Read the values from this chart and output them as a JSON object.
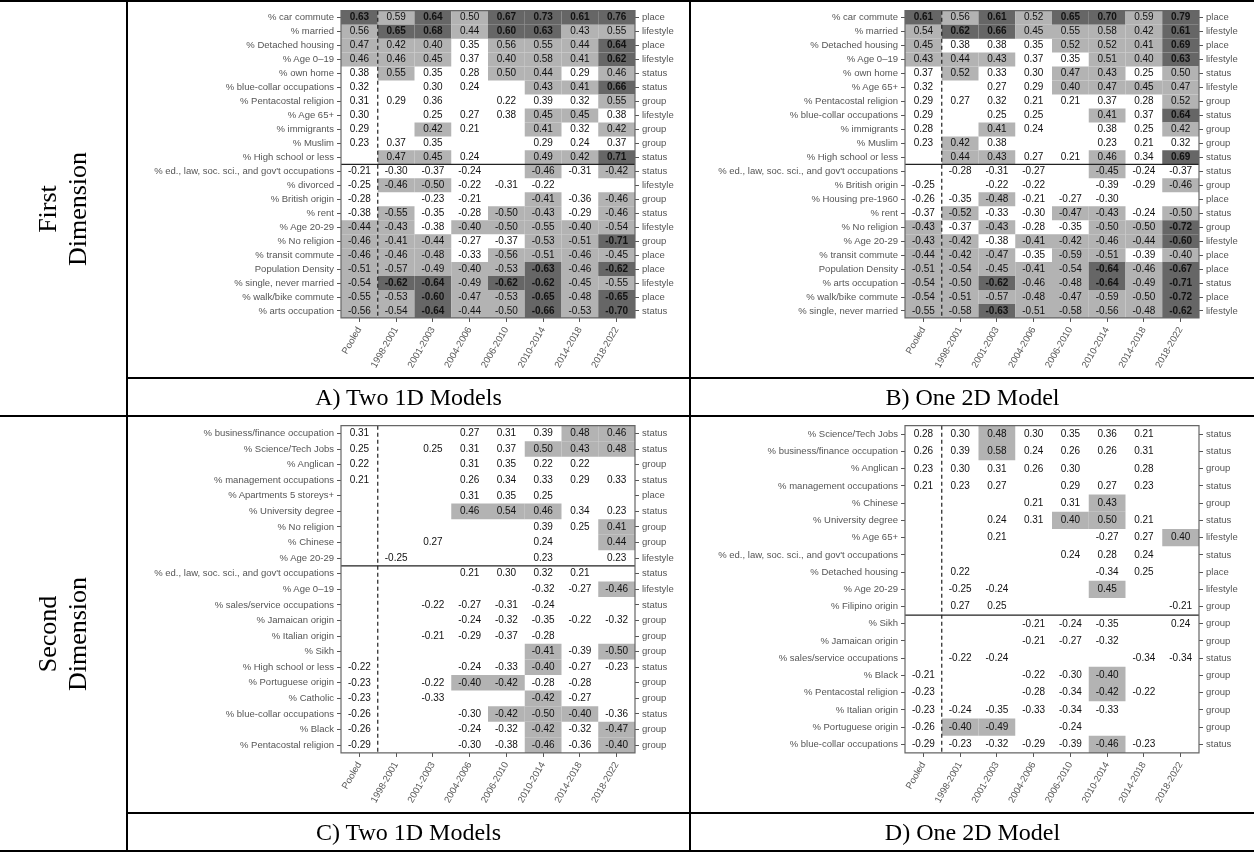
{
  "chart_data": [
    {
      "type": "heatmap",
      "title": "A) Two 1D Models",
      "annotations": [
        "First Dimension"
      ],
      "data_labels": true,
      "categories": [
        "Pooled",
        "1998-2001",
        "2001-2003",
        "2004-2006",
        "2006-2010",
        "2010-2014",
        "2014-2018",
        "2018-2022"
      ],
      "y_categories": [
        "% car commute",
        "% married",
        "% Detached housing",
        "% Age 0–19",
        "% own home",
        "% blue-collar occupations",
        "% Pentacostal religion",
        "% Age 65+",
        "% immigrants",
        "% Muslim",
        "% High school or less",
        "% ed., law, soc. sci., and gov't occupations",
        "% divorced",
        "% British origin",
        "% rent",
        "% Age 20-29",
        "% No religion",
        "% transit commute",
        "Population Density",
        "% single, never married",
        "% walk/bike commute",
        "% arts occupation"
      ],
      "y2_categories": [
        "place",
        "lifestyle",
        "place",
        "lifestyle",
        "status",
        "status",
        "group",
        "lifestyle",
        "group",
        "group",
        "status",
        "status",
        "lifestyle",
        "group",
        "status",
        "lifestyle",
        "group",
        "place",
        "place",
        "lifestyle",
        "place",
        "status"
      ],
      "cells": [
        [
          0.63,
          0.59,
          0.64,
          0.5,
          0.67,
          0.73,
          0.61,
          0.76
        ],
        [
          0.56,
          0.65,
          0.68,
          0.44,
          0.6,
          0.63,
          0.43,
          0.55
        ],
        [
          0.47,
          0.42,
          0.4,
          0.35,
          0.56,
          0.55,
          0.44,
          0.64
        ],
        [
          0.46,
          0.46,
          0.45,
          0.37,
          0.4,
          0.58,
          0.41,
          0.62
        ],
        [
          0.38,
          0.55,
          0.35,
          0.28,
          0.5,
          0.44,
          0.29,
          0.46
        ],
        [
          0.32,
          null,
          0.3,
          0.24,
          null,
          0.43,
          0.41,
          0.66
        ],
        [
          0.31,
          0.29,
          0.36,
          null,
          0.22,
          0.39,
          0.32,
          0.55
        ],
        [
          0.3,
          null,
          0.25,
          0.27,
          0.38,
          0.45,
          0.45,
          0.38
        ],
        [
          0.29,
          null,
          0.42,
          0.21,
          null,
          0.41,
          0.32,
          0.42
        ],
        [
          0.23,
          0.37,
          0.35,
          null,
          null,
          0.29,
          0.24,
          0.37
        ],
        [
          null,
          0.47,
          0.45,
          0.24,
          null,
          0.49,
          0.42,
          0.71
        ],
        [
          -0.21,
          -0.3,
          -0.37,
          -0.24,
          null,
          -0.46,
          -0.31,
          -0.42
        ],
        [
          -0.25,
          -0.46,
          -0.5,
          -0.22,
          -0.31,
          -0.22,
          null,
          null
        ],
        [
          -0.28,
          null,
          -0.23,
          -0.21,
          null,
          -0.41,
          -0.36,
          -0.46
        ],
        [
          -0.38,
          -0.55,
          -0.35,
          -0.28,
          -0.5,
          -0.43,
          -0.29,
          -0.46
        ],
        [
          -0.44,
          -0.43,
          -0.38,
          -0.4,
          -0.5,
          -0.55,
          -0.4,
          -0.54
        ],
        [
          -0.46,
          -0.41,
          -0.44,
          -0.27,
          -0.37,
          -0.53,
          -0.51,
          -0.71
        ],
        [
          -0.46,
          -0.46,
          -0.48,
          -0.33,
          -0.56,
          -0.51,
          -0.46,
          -0.45
        ],
        [
          -0.51,
          -0.57,
          -0.49,
          -0.4,
          -0.53,
          -0.63,
          -0.46,
          -0.62
        ],
        [
          -0.54,
          -0.62,
          -0.64,
          -0.49,
          -0.62,
          -0.62,
          -0.45,
          -0.55
        ],
        [
          -0.55,
          -0.53,
          -0.6,
          -0.47,
          -0.53,
          -0.65,
          -0.48,
          -0.65
        ],
        [
          -0.56,
          -0.54,
          -0.64,
          -0.44,
          -0.5,
          -0.66,
          -0.53,
          -0.7
        ]
      ],
      "cell_labels": [
        [
          "0.63",
          "0.59",
          "0.64",
          "0.50",
          "0.67",
          "0.73",
          "0.61",
          "0.76"
        ],
        [
          "0.56",
          "0.65",
          "0.68",
          "0.44",
          "0.60",
          "0.63",
          "0.43",
          "0.55"
        ],
        [
          "0.47",
          "0.42",
          "0.40",
          "0.35",
          "0.56",
          "0.55",
          "0.44",
          "0.64"
        ],
        [
          "0.46",
          "0.46",
          "0.45",
          "0.37",
          "0.40",
          "0.58",
          "0.41",
          "0.62"
        ],
        [
          "0.38",
          "0.55",
          "0.35",
          "0.28",
          "0.50",
          "0.44",
          "0.29",
          "0.46"
        ],
        [
          "0.32",
          null,
          "0.30",
          "0.24",
          null,
          "0.43",
          "0.41",
          "0.66"
        ],
        [
          "0.31",
          "0.29",
          "0.36",
          null,
          "0.22",
          "0.39",
          "0.32",
          "0.55"
        ],
        [
          "0.30",
          null,
          "0.25",
          "0.27",
          "0.38",
          "0.45",
          "0.45",
          "0.38"
        ],
        [
          "0.29",
          null,
          "0.42",
          "0.21",
          null,
          "0.41",
          "0.32",
          "0.42"
        ],
        [
          "0.23",
          "0.37",
          "0.35",
          null,
          null,
          "0.29",
          "0.24",
          "0.37"
        ],
        [
          null,
          "0.47",
          "0.45",
          "0.24",
          null,
          "0.49",
          "0.42",
          "0.71"
        ],
        [
          "-0.21",
          "-0.30",
          "-0.37",
          "-0.24",
          null,
          "-0.46",
          "-0.31",
          "-0.42"
        ],
        [
          "-0.25",
          "-0.46",
          "-0.50",
          "-0.22",
          "-0.31",
          "-0.22",
          null,
          null
        ],
        [
          "-0.28",
          null,
          "-0.23",
          "-0.21",
          null,
          "-0.41",
          "-0.36",
          "-0.46"
        ],
        [
          "-0.38",
          "-0.55",
          "-0.35",
          "-0.28",
          "-0.50",
          "-0.43",
          "-0.29",
          "-0.46"
        ],
        [
          "-0.44",
          "-0.43",
          "-0.38",
          "-0.40",
          "-0.50",
          "-0.55",
          "-0.40",
          "-0.54"
        ],
        [
          "-0.46",
          "-0.41",
          "-0.44",
          "-0.27",
          "-0.37",
          "-0.53",
          "-0.51",
          "-0.71"
        ],
        [
          "-0.46",
          "-0.46",
          "-0.48",
          "-0.33",
          "-0.56",
          "-0.51",
          "-0.46",
          "-0.45"
        ],
        [
          "-0.51",
          "-0.57",
          "-0.49",
          "-0.40",
          "-0.53",
          "-0.63",
          "-0.46",
          "-0.62"
        ],
        [
          "-0.54",
          "-0.62",
          "-0.64",
          "-0.49",
          "-0.62",
          "-0.62",
          "-0.45",
          "-0.55"
        ],
        [
          "-0.55",
          "-0.53",
          "-0.60",
          "-0.47",
          "-0.53",
          "-0.65",
          "-0.48",
          "-0.65"
        ],
        [
          "-0.56",
          "-0.54",
          "-0.64",
          "-0.44",
          "-0.50",
          "-0.66",
          "-0.53",
          "-0.70"
        ]
      ],
      "ref_lines": [
        {
          "axis": "x",
          "value": "1998-2001",
          "line_style": "dashed"
        },
        {
          "axis": "y",
          "value": "% ed., law, soc. sci., and gov't occupations",
          "line_style": "solid"
        }
      ]
    },
    {
      "type": "heatmap",
      "title": "B) One 2D Model",
      "data_labels": true,
      "categories": [
        "Pooled",
        "1998-2001",
        "2001-2003",
        "2004-2006",
        "2006-2010",
        "2010-2014",
        "2014-2018",
        "2018-2022"
      ],
      "y_categories": [
        "% car commute",
        "% married",
        "% Detached housing",
        "% Age 0–19",
        "% own home",
        "% Age 65+",
        "% Pentacostal religion",
        "% blue-collar occupations",
        "% immigrants",
        "% Muslim",
        "% High school or less",
        "% ed., law, soc. sci., and gov't occupations",
        "% British origin",
        "% Housing pre-1960",
        "% rent",
        "% No religion",
        "% Age 20-29",
        "% transit commute",
        "Population Density",
        "% arts occupation",
        "% walk/bike commute",
        "% single, never married"
      ],
      "y2_categories": [
        "place",
        "lifestyle",
        "place",
        "lifestyle",
        "status",
        "lifestyle",
        "group",
        "status",
        "group",
        "group",
        "status",
        "status",
        "group",
        "place",
        "status",
        "group",
        "lifestyle",
        "place",
        "place",
        "status",
        "place",
        "lifestyle"
      ],
      "cells": [
        [
          0.61,
          0.56,
          0.61,
          0.52,
          0.65,
          0.7,
          0.59,
          0.79
        ],
        [
          0.54,
          0.62,
          0.66,
          0.45,
          0.55,
          0.58,
          0.42,
          0.61
        ],
        [
          0.45,
          0.38,
          0.38,
          0.35,
          0.52,
          0.52,
          0.41,
          0.69
        ],
        [
          0.43,
          0.44,
          0.43,
          0.37,
          0.35,
          0.51,
          0.4,
          0.63
        ],
        [
          0.37,
          0.52,
          0.33,
          0.3,
          0.47,
          0.43,
          0.25,
          0.5
        ],
        [
          0.32,
          null,
          0.27,
          0.29,
          0.4,
          0.47,
          0.45,
          0.47
        ],
        [
          0.29,
          0.27,
          0.32,
          0.21,
          0.21,
          0.37,
          0.28,
          0.52
        ],
        [
          0.29,
          null,
          0.25,
          0.25,
          null,
          0.41,
          0.37,
          0.64
        ],
        [
          0.28,
          null,
          0.41,
          0.24,
          null,
          0.38,
          0.25,
          0.42
        ],
        [
          0.23,
          0.42,
          0.38,
          null,
          null,
          0.23,
          0.21,
          0.32
        ],
        [
          null,
          0.44,
          0.43,
          0.27,
          0.21,
          0.46,
          0.34,
          0.69
        ],
        [
          null,
          -0.28,
          -0.31,
          -0.27,
          null,
          -0.45,
          -0.24,
          -0.37
        ],
        [
          -0.25,
          null,
          -0.22,
          -0.22,
          null,
          -0.39,
          -0.29,
          -0.46
        ],
        [
          -0.26,
          -0.35,
          -0.48,
          -0.21,
          -0.27,
          -0.3,
          null,
          null
        ],
        [
          -0.37,
          -0.52,
          -0.33,
          -0.3,
          -0.47,
          -0.43,
          -0.24,
          -0.5
        ],
        [
          -0.43,
          -0.37,
          -0.43,
          -0.28,
          -0.35,
          -0.5,
          -0.5,
          -0.72
        ],
        [
          -0.43,
          -0.42,
          -0.38,
          -0.41,
          -0.42,
          -0.46,
          -0.44,
          -0.6
        ],
        [
          -0.44,
          -0.42,
          -0.47,
          -0.35,
          -0.59,
          -0.51,
          -0.39,
          -0.4
        ],
        [
          -0.51,
          -0.54,
          -0.45,
          -0.41,
          -0.54,
          -0.64,
          -0.46,
          -0.67
        ],
        [
          -0.54,
          -0.5,
          -0.62,
          -0.46,
          -0.48,
          -0.64,
          -0.49,
          -0.71
        ],
        [
          -0.54,
          -0.51,
          -0.57,
          -0.48,
          -0.47,
          -0.59,
          -0.5,
          -0.72
        ],
        [
          -0.55,
          -0.58,
          -0.63,
          -0.51,
          -0.58,
          -0.56,
          -0.48,
          -0.62
        ]
      ],
      "cell_labels": [
        [
          "0.61",
          "0.56",
          "0.61",
          "0.52",
          "0.65",
          "0.70",
          "0.59",
          "0.79"
        ],
        [
          "0.54",
          "0.62",
          "0.66",
          "0.45",
          "0.55",
          "0.58",
          "0.42",
          "0.61"
        ],
        [
          "0.45",
          "0.38",
          "0.38",
          "0.35",
          "0.52",
          "0.52",
          "0.41",
          "0.69"
        ],
        [
          "0.43",
          "0.44",
          "0.43",
          "0.37",
          "0.35",
          "0.51",
          "0.40",
          "0.63"
        ],
        [
          "0.37",
          "0.52",
          "0.33",
          "0.30",
          "0.47",
          "0.43",
          "0.25",
          "0.50"
        ],
        [
          "0.32",
          null,
          "0.27",
          "0.29",
          "0.40",
          "0.47",
          "0.45",
          "0.47"
        ],
        [
          "0.29",
          "0.27",
          "0.32",
          "0.21",
          "0.21",
          "0.37",
          "0.28",
          "0.52"
        ],
        [
          "0.29",
          null,
          "0.25",
          "0.25",
          null,
          "0.41",
          "0.37",
          "0.64"
        ],
        [
          "0.28",
          null,
          "0.41",
          "0.24",
          null,
          "0.38",
          "0.25",
          "0.42"
        ],
        [
          "0.23",
          "0.42",
          "0.38",
          null,
          null,
          "0.23",
          "0.21",
          "0.32"
        ],
        [
          null,
          "0.44",
          "0.43",
          "0.27",
          "0.21",
          "0.46",
          "0.34",
          "0.69"
        ],
        [
          null,
          "-0.28",
          "-0.31",
          "-0.27",
          null,
          "-0.45",
          "-0.24",
          "-0.37"
        ],
        [
          "-0.25",
          null,
          "-0.22",
          "-0.22",
          null,
          "-0.39",
          "-0.29",
          "-0.46"
        ],
        [
          "-0.26",
          "-0.35",
          "-0.48",
          "-0.21",
          "-0.27",
          "-0.30",
          null,
          null
        ],
        [
          "-0.37",
          "-0.52",
          "-0.33",
          "-0.30",
          "-0.47",
          "-0.43",
          "-0.24",
          "-0.50"
        ],
        [
          "-0.43",
          "-0.37",
          "-0.43",
          "-0.28",
          "-0.35",
          "-0.50",
          "-0.50",
          "-0.72"
        ],
        [
          "-0.43",
          "-0.42",
          "-0.38",
          "-0.41",
          "-0.42",
          "-0.46",
          "-0.44",
          "-0.60"
        ],
        [
          "-0.44",
          "-0.42",
          "-0.47",
          "-0.35",
          "-0.59",
          "-0.51",
          "-0.39",
          "-0.40"
        ],
        [
          "-0.51",
          "-0.54",
          "-0.45",
          "-0.41",
          "-0.54",
          "-0.64",
          "-0.46",
          "-0.67"
        ],
        [
          "-0.54",
          "-0.50",
          "-0.62",
          "-0.46",
          "-0.48",
          "-0.64",
          "-0.49",
          "-0.71"
        ],
        [
          "-0.54",
          "-0.51",
          "-0.57",
          "-0.48",
          "-0.47",
          "-0.59",
          "-0.50",
          "-0.72"
        ],
        [
          "-0.55",
          "-0.58",
          "-0.63",
          "-0.51",
          "-0.58",
          "-0.56",
          "-0.48",
          "-0.62"
        ]
      ],
      "ref_lines": [
        {
          "axis": "x",
          "value": "1998-2001",
          "line_style": "dashed"
        },
        {
          "axis": "y",
          "value": "% ed., law, soc. sci., and gov't occupations",
          "line_style": "solid"
        }
      ]
    },
    {
      "type": "heatmap",
      "title": "C) Two 1D Models",
      "annotations": [
        "Second Dimension"
      ],
      "data_labels": true,
      "categories": [
        "Pooled",
        "1998-2001",
        "2001-2003",
        "2004-2006",
        "2006-2010",
        "2010-2014",
        "2014-2018",
        "2018-2022"
      ],
      "y_categories": [
        "% business/finance occupation",
        "% Science/Tech Jobs",
        "% Anglican",
        "% management occupations",
        "% Apartments 5 storeys+",
        "% University degree",
        "% No religion",
        "% Chinese",
        "% Age 20-29",
        "% ed., law, soc. sci., and gov't occupations",
        "% Age 0–19",
        "% sales/service occupations",
        "% Jamaican origin",
        "% Italian origin",
        "% Sikh",
        "% High school or less",
        "% Portuguese origin",
        "% Catholic",
        "% blue-collar occupations",
        "% Black",
        "% Pentacostal religion"
      ],
      "y2_categories": [
        "status",
        "status",
        "group",
        "status",
        "place",
        "status",
        "group",
        "group",
        "lifestyle",
        "status",
        "lifestyle",
        "status",
        "group",
        "group",
        "group",
        "status",
        "group",
        "group",
        "status",
        "group",
        "group"
      ],
      "cells": [
        [
          0.31,
          null,
          null,
          0.27,
          0.31,
          0.39,
          0.48,
          0.46
        ],
        [
          0.25,
          null,
          0.25,
          0.31,
          0.37,
          0.5,
          0.43,
          0.48
        ],
        [
          0.22,
          null,
          null,
          0.31,
          0.35,
          0.22,
          0.22,
          null
        ],
        [
          0.21,
          null,
          null,
          0.26,
          0.34,
          0.33,
          0.29,
          0.33
        ],
        [
          null,
          null,
          null,
          0.31,
          0.35,
          0.25,
          null,
          null
        ],
        [
          null,
          null,
          null,
          0.46,
          0.54,
          0.46,
          0.34,
          0.23
        ],
        [
          null,
          null,
          null,
          null,
          null,
          0.39,
          0.25,
          0.41
        ],
        [
          null,
          null,
          0.27,
          null,
          null,
          0.24,
          null,
          0.44
        ],
        [
          null,
          -0.25,
          null,
          null,
          null,
          0.23,
          null,
          0.23
        ],
        [
          null,
          null,
          null,
          0.21,
          0.3,
          0.32,
          0.21,
          null
        ],
        [
          null,
          null,
          null,
          null,
          null,
          -0.32,
          -0.27,
          -0.46
        ],
        [
          null,
          null,
          -0.22,
          -0.27,
          -0.31,
          -0.24,
          null,
          null
        ],
        [
          null,
          null,
          null,
          -0.24,
          -0.32,
          -0.35,
          -0.22,
          -0.32
        ],
        [
          null,
          null,
          -0.21,
          -0.29,
          -0.37,
          -0.28,
          null,
          null
        ],
        [
          null,
          null,
          null,
          null,
          null,
          -0.41,
          -0.39,
          -0.5
        ],
        [
          -0.22,
          null,
          null,
          -0.24,
          -0.33,
          -0.4,
          -0.27,
          -0.23
        ],
        [
          -0.23,
          null,
          -0.22,
          -0.4,
          -0.42,
          -0.28,
          -0.28,
          null
        ],
        [
          -0.23,
          null,
          -0.33,
          null,
          null,
          -0.42,
          -0.27,
          null
        ],
        [
          -0.26,
          null,
          null,
          -0.3,
          -0.42,
          -0.5,
          -0.4,
          -0.36
        ],
        [
          -0.26,
          null,
          null,
          -0.24,
          -0.32,
          -0.42,
          -0.32,
          -0.47
        ],
        [
          -0.29,
          null,
          null,
          -0.3,
          -0.38,
          -0.46,
          -0.36,
          -0.4
        ]
      ],
      "cell_labels": [
        [
          "0.31",
          null,
          null,
          "0.27",
          "0.31",
          "0.39",
          "0.48",
          "0.46"
        ],
        [
          "0.25",
          null,
          "0.25",
          "0.31",
          "0.37",
          "0.50",
          "0.43",
          "0.48"
        ],
        [
          "0.22",
          null,
          null,
          "0.31",
          "0.35",
          "0.22",
          "0.22",
          null
        ],
        [
          "0.21",
          null,
          null,
          "0.26",
          "0.34",
          "0.33",
          "0.29",
          "0.33"
        ],
        [
          null,
          null,
          null,
          "0.31",
          "0.35",
          "0.25",
          null,
          null
        ],
        [
          null,
          null,
          null,
          "0.46",
          "0.54",
          "0.46",
          "0.34",
          "0.23"
        ],
        [
          null,
          null,
          null,
          null,
          null,
          "0.39",
          "0.25",
          "0.41"
        ],
        [
          null,
          null,
          "0.27",
          null,
          null,
          "0.24",
          null,
          "0.44"
        ],
        [
          null,
          "-0.25",
          null,
          null,
          null,
          "0.23",
          null,
          "0.23"
        ],
        [
          null,
          null,
          null,
          "0.21",
          "0.30",
          "0.32",
          "0.21",
          null
        ],
        [
          null,
          null,
          null,
          null,
          null,
          "-0.32",
          "-0.27",
          "-0.46"
        ],
        [
          null,
          null,
          "-0.22",
          "-0.27",
          "-0.31",
          "-0.24",
          null,
          null
        ],
        [
          null,
          null,
          null,
          "-0.24",
          "-0.32",
          "-0.35",
          "-0.22",
          "-0.32"
        ],
        [
          null,
          null,
          "-0.21",
          "-0.29",
          "-0.37",
          "-0.28",
          null,
          null
        ],
        [
          null,
          null,
          null,
          null,
          null,
          "-0.41",
          "-0.39",
          "-0.50"
        ],
        [
          "-0.22",
          null,
          null,
          "-0.24",
          "-0.33",
          "-0.40",
          "-0.27",
          "-0.23"
        ],
        [
          "-0.23",
          null,
          "-0.22",
          "-0.40",
          "-0.42",
          "-0.28",
          "-0.28",
          null
        ],
        [
          "-0.23",
          null,
          "-0.33",
          null,
          null,
          "-0.42",
          "-0.27",
          null
        ],
        [
          "-0.26",
          null,
          null,
          "-0.30",
          "-0.42",
          "-0.50",
          "-0.40",
          "-0.36"
        ],
        [
          "-0.26",
          null,
          null,
          "-0.24",
          "-0.32",
          "-0.42",
          "-0.32",
          "-0.47"
        ],
        [
          "-0.29",
          null,
          null,
          "-0.30",
          "-0.38",
          "-0.46",
          "-0.36",
          "-0.40"
        ]
      ],
      "ref_lines": [
        {
          "axis": "x",
          "value": "1998-2001",
          "line_style": "dashed"
        },
        {
          "axis": "y",
          "value": "% ed., law, soc. sci., and gov't occupations",
          "line_style": "solid"
        }
      ]
    },
    {
      "type": "heatmap",
      "title": "D) One 2D Model",
      "data_labels": true,
      "categories": [
        "Pooled",
        "1998-2001",
        "2001-2003",
        "2004-2006",
        "2006-2010",
        "2010-2014",
        "2014-2018",
        "2018-2022"
      ],
      "y_categories": [
        "% Science/Tech Jobs",
        "% business/finance occupation",
        "% Anglican",
        "% management occupations",
        "% Chinese",
        "% University degree",
        "% Age 65+",
        "% ed., law, soc. sci., and gov't occupations",
        "% Detached housing",
        "% Age 20-29",
        "% Filipino origin",
        "% Sikh",
        "% Jamaican origin",
        "% sales/service occupations",
        "% Black",
        "% Pentacostal religion",
        "% Italian origin",
        "% Portuguese origin",
        "% blue-collar occupations"
      ],
      "y2_categories": [
        "status",
        "status",
        "group",
        "status",
        "group",
        "status",
        "lifestyle",
        "status",
        "place",
        "lifestyle",
        "group",
        "group",
        "group",
        "status",
        "group",
        "group",
        "group",
        "group",
        "status"
      ],
      "cells": [
        [
          0.28,
          0.3,
          0.48,
          0.3,
          0.35,
          0.36,
          0.21,
          null
        ],
        [
          0.26,
          0.39,
          0.58,
          0.24,
          0.26,
          0.26,
          0.31,
          null
        ],
        [
          0.23,
          0.3,
          0.31,
          0.26,
          0.3,
          null,
          0.28,
          null
        ],
        [
          0.21,
          0.23,
          0.27,
          null,
          0.29,
          0.27,
          0.23,
          null
        ],
        [
          null,
          null,
          null,
          0.21,
          0.31,
          0.43,
          null,
          null
        ],
        [
          null,
          null,
          0.24,
          0.31,
          0.4,
          0.5,
          0.21,
          null
        ],
        [
          null,
          null,
          0.21,
          null,
          null,
          -0.27,
          0.27,
          0.4
        ],
        [
          null,
          null,
          null,
          null,
          0.24,
          0.28,
          0.24,
          null
        ],
        [
          null,
          0.22,
          null,
          null,
          null,
          -0.34,
          0.25,
          null
        ],
        [
          null,
          -0.25,
          -0.24,
          null,
          null,
          0.45,
          null,
          null
        ],
        [
          null,
          0.27,
          0.25,
          null,
          null,
          null,
          null,
          -0.21
        ],
        [
          null,
          null,
          null,
          -0.21,
          -0.24,
          -0.35,
          null,
          0.24
        ],
        [
          null,
          null,
          null,
          -0.21,
          -0.27,
          -0.32,
          null,
          null
        ],
        [
          null,
          -0.22,
          -0.24,
          null,
          null,
          null,
          -0.34,
          -0.34
        ],
        [
          -0.21,
          null,
          null,
          -0.22,
          -0.3,
          -0.4,
          null,
          null
        ],
        [
          -0.23,
          null,
          null,
          -0.28,
          -0.34,
          -0.42,
          -0.22,
          null
        ],
        [
          -0.23,
          -0.24,
          -0.35,
          -0.33,
          -0.34,
          -0.33,
          null,
          null
        ],
        [
          -0.26,
          -0.4,
          -0.49,
          null,
          -0.24,
          null,
          null,
          null
        ],
        [
          -0.29,
          -0.23,
          -0.32,
          -0.29,
          -0.39,
          -0.46,
          -0.23,
          null
        ]
      ],
      "cell_labels": [
        [
          "0.28",
          "0.30",
          "0.48",
          "0.30",
          "0.35",
          "0.36",
          "0.21",
          null
        ],
        [
          "0.26",
          "0.39",
          "0.58",
          "0.24",
          "0.26",
          "0.26",
          "0.31",
          null
        ],
        [
          "0.23",
          "0.30",
          "0.31",
          "0.26",
          "0.30",
          null,
          "0.28",
          null
        ],
        [
          "0.21",
          "0.23",
          "0.27",
          null,
          "0.29",
          "0.27",
          "0.23",
          null
        ],
        [
          null,
          null,
          null,
          "0.21",
          "0.31",
          "0.43",
          null,
          null
        ],
        [
          null,
          null,
          "0.24",
          "0.31",
          "0.40",
          "0.50",
          "0.21",
          null
        ],
        [
          null,
          null,
          "0.21",
          null,
          null,
          "-0.27",
          "0.27",
          "0.40"
        ],
        [
          null,
          null,
          null,
          null,
          "0.24",
          "0.28",
          "0.24",
          null
        ],
        [
          null,
          "0.22",
          null,
          null,
          null,
          "-0.34",
          "0.25",
          null
        ],
        [
          null,
          "-0.25",
          "-0.24",
          null,
          null,
          "0.45",
          null,
          null
        ],
        [
          null,
          "0.27",
          "0.25",
          null,
          null,
          null,
          null,
          "-0.21"
        ],
        [
          null,
          null,
          null,
          "-0.21",
          "-0.24",
          "-0.35",
          null,
          "0.24"
        ],
        [
          null,
          null,
          null,
          "-0.21",
          "-0.27",
          "-0.32",
          null,
          null
        ],
        [
          null,
          "-0.22",
          "-0.24",
          null,
          null,
          null,
          "-0.34",
          "-0.34"
        ],
        [
          "-0.21",
          null,
          null,
          "-0.22",
          "-0.30",
          "-0.40",
          null,
          null
        ],
        [
          "-0.23",
          null,
          null,
          "-0.28",
          "-0.34",
          "-0.42",
          "-0.22",
          null
        ],
        [
          "-0.23",
          "-0.24",
          "-0.35",
          "-0.33",
          "-0.34",
          "-0.33",
          null,
          null
        ],
        [
          "-0.26",
          "-0.40",
          "-0.49",
          null,
          "-0.24",
          null,
          null,
          null
        ],
        [
          "-0.29",
          "-0.23",
          "-0.32",
          "-0.29",
          "-0.39",
          "-0.46",
          "-0.23",
          null
        ]
      ],
      "ref_lines": [
        {
          "axis": "x",
          "value": "1998-2001",
          "line_style": "dashed"
        },
        {
          "axis": "y",
          "value": "% Sikh",
          "line_style": "solid"
        }
      ]
    }
  ]
}
